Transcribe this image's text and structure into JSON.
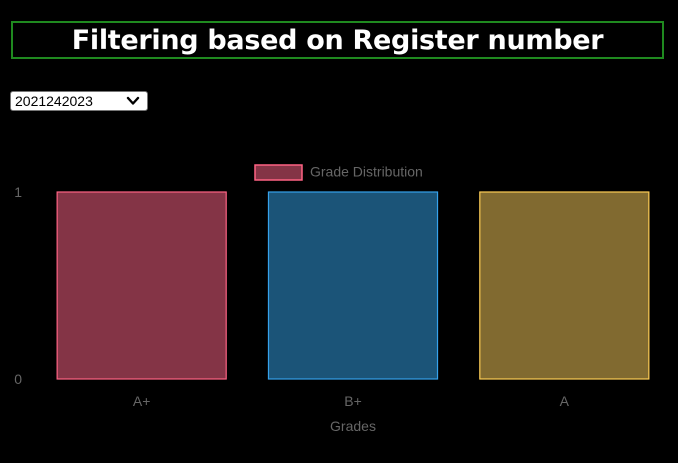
{
  "header": {
    "title": "Filtering based on Register number"
  },
  "register_select": {
    "selected": "2021242023"
  },
  "chart_data": {
    "type": "bar",
    "categories": [
      "A+",
      "B+",
      "A"
    ],
    "series": [
      {
        "name": "Grade Distribution",
        "values": [
          1,
          1,
          1
        ]
      }
    ],
    "xlabel": "Grades",
    "ylabel": "",
    "ylim": [
      0,
      1
    ],
    "yticks": [
      "0",
      "1"
    ],
    "legend": "top-center",
    "grid": false,
    "bar_fill_colors": [
      "#843446",
      "#1b5478",
      "#816a30"
    ],
    "bar_border_colors": [
      "#ff6384",
      "#36a2eb",
      "#ffce56"
    ]
  }
}
